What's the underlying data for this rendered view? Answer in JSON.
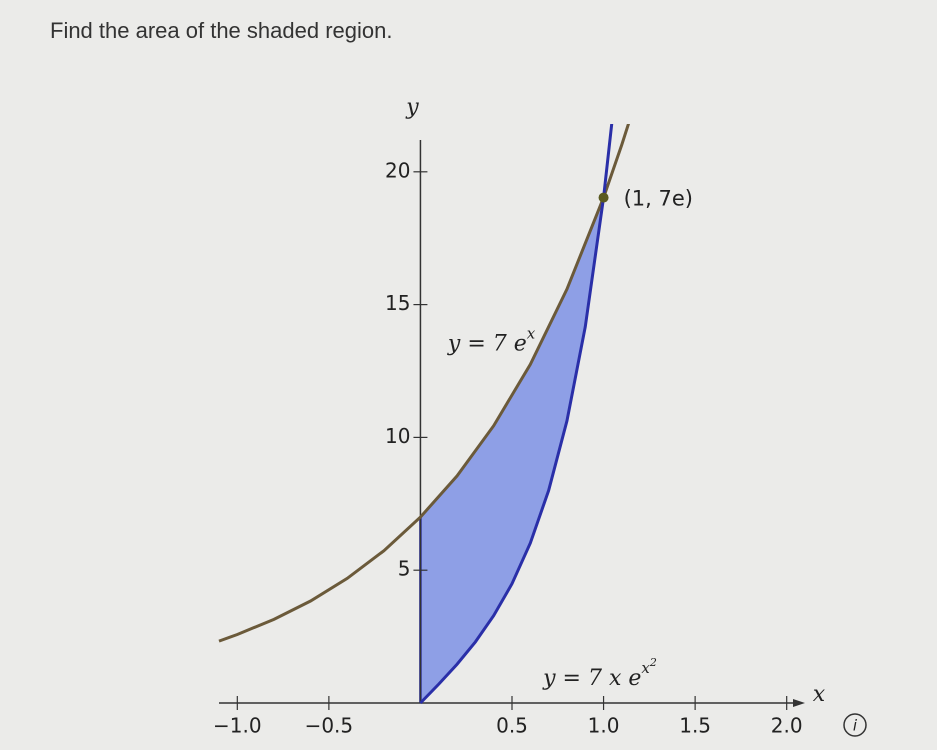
{
  "chart_data": {
    "type": "line",
    "title": "Find the area of the shaded region.",
    "x_label": "x",
    "y_label": "y",
    "xlim": [
      -1.1,
      2.1
    ],
    "ylim": [
      0,
      21.8
    ],
    "xticks": [
      {
        "value": -1.0,
        "label": "−1.0"
      },
      {
        "value": -0.5,
        "label": "−0.5"
      },
      0.5,
      {
        "value": 1.0,
        "label": "1.0"
      },
      1.5,
      {
        "value": 2.0,
        "label": "2.0"
      }
    ],
    "yticks": [
      5,
      10,
      15,
      20
    ],
    "series": [
      {
        "name": "y = 7e^x",
        "color": "#6b5a3a",
        "x": [
          -1.1,
          -1.0,
          -0.8,
          -0.6,
          -0.4,
          -0.2,
          0,
          0.2,
          0.4,
          0.6,
          0.8,
          1.0,
          1.1,
          1.14
        ],
        "values": [
          2.33,
          2.58,
          3.15,
          3.84,
          4.69,
          5.73,
          7.0,
          8.55,
          10.44,
          12.75,
          15.58,
          19.03,
          21.03,
          21.89
        ]
      },
      {
        "name": "y = 7xe^(x^2)",
        "color": "#2a2fa8",
        "x": [
          0,
          0.1,
          0.2,
          0.3,
          0.4,
          0.5,
          0.6,
          0.7,
          0.8,
          0.9,
          1.0,
          1.05
        ],
        "values": [
          0,
          0.71,
          1.46,
          2.3,
          3.29,
          4.49,
          6.02,
          8.0,
          10.62,
          14.16,
          19.03,
          22.14
        ]
      }
    ],
    "shade_color": "#8e9fe6",
    "annotations": [
      {
        "text": "y = 7 e",
        "sup": "x",
        "x": 0.15,
        "y": 13.5
      },
      {
        "text": "y = 7 x e",
        "sup": "x",
        "sup2": "2",
        "x": 0.67,
        "y": 0.9
      }
    ],
    "point": {
      "x": 1.0,
      "y": 19.03,
      "label": "(1, 7e)",
      "color": "#5a5a20"
    },
    "info_icon": "i"
  }
}
